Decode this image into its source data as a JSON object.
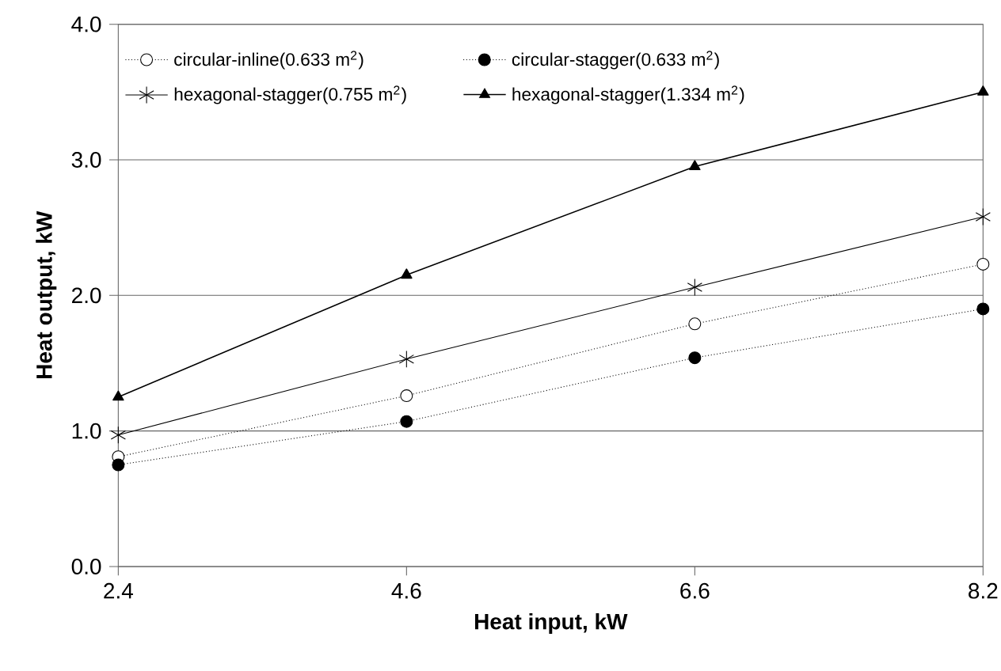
{
  "chart_data": {
    "type": "line",
    "xlabel": "Heat input, kW",
    "ylabel": "Heat output, kW",
    "categories": [
      "2.4",
      "4.6",
      "6.6",
      "8.2"
    ],
    "ylim": [
      0,
      4
    ],
    "yticks": [
      {
        "value": 0,
        "label": "0.0"
      },
      {
        "value": 1,
        "label": "1.0"
      },
      {
        "value": 2,
        "label": "2.0"
      },
      {
        "value": 3,
        "label": "3.0"
      },
      {
        "value": 4,
        "label": "4.0"
      }
    ],
    "grid": "y",
    "legend": "top left",
    "series": [
      {
        "name": "circular-inline(0.633 m$^{2}$)",
        "color": "#000000",
        "marker": "circle",
        "line_style": "dotted",
        "values": [
          0.81,
          1.26,
          1.79,
          2.23
        ]
      },
      {
        "name": "circular-stagger(0.633 m$^{2}$)",
        "color": "#000000",
        "marker": "circle",
        "line_style": "dotted",
        "values": [
          0.75,
          1.07,
          1.54,
          1.9
        ]
      },
      {
        "name": "hexagonal-stagger(0.755 m$^{2}$)",
        "color": "#000000",
        "marker": "cross",
        "line_style": "solid",
        "values": [
          0.97,
          1.53,
          2.06,
          2.58
        ]
      },
      {
        "name": "hexagonal-stagger(1.334 m$^{2}$)",
        "color": "#000000",
        "marker": "triangle",
        "line_style": "solid",
        "values": [
          1.25,
          2.15,
          2.95,
          3.5
        ]
      }
    ]
  }
}
